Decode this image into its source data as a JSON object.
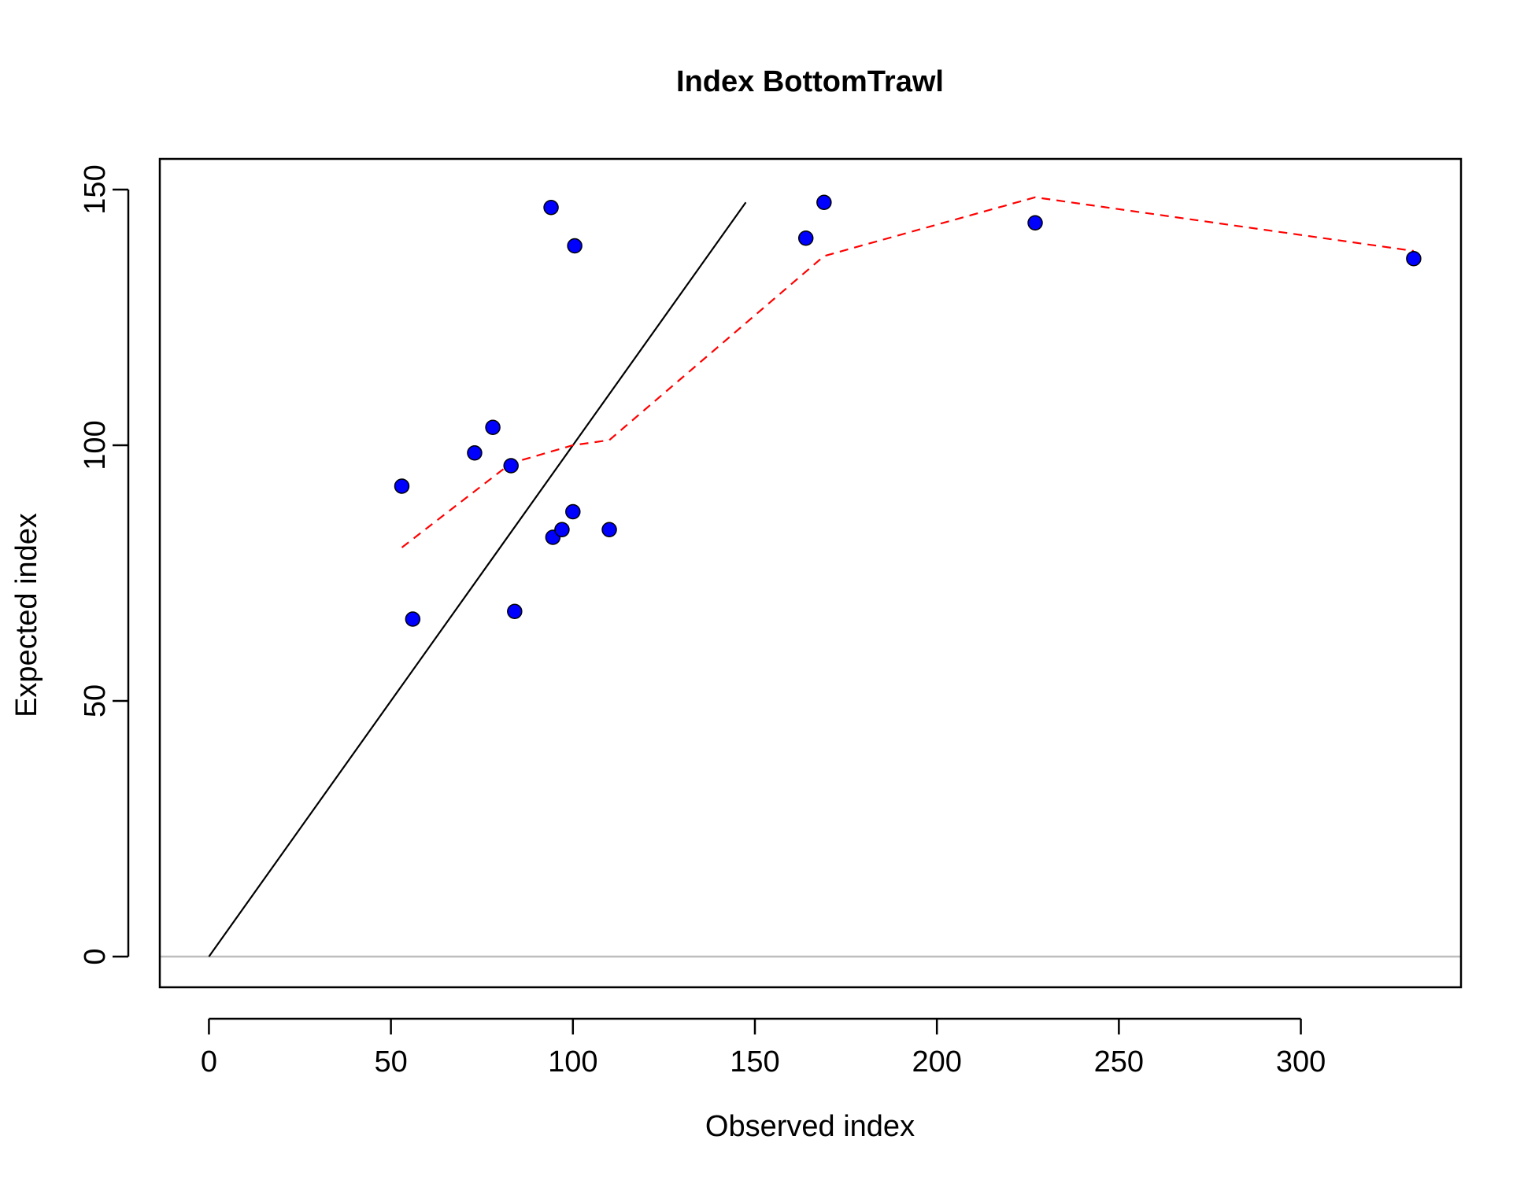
{
  "chart_data": {
    "type": "scatter",
    "title": "Index BottomTrawl",
    "xlabel": "Observed index",
    "ylabel": "Expected index",
    "xlim": [
      -13.5,
      344
    ],
    "ylim": [
      -6,
      156
    ],
    "xticks": [
      0,
      50,
      100,
      150,
      200,
      250,
      300
    ],
    "yticks": [
      0,
      50,
      100,
      150
    ],
    "grid": false,
    "legend": "none",
    "points": [
      {
        "x": 53,
        "y": 92
      },
      {
        "x": 56,
        "y": 66
      },
      {
        "x": 73,
        "y": 98.5
      },
      {
        "x": 78,
        "y": 103.5
      },
      {
        "x": 83,
        "y": 96
      },
      {
        "x": 84,
        "y": 67.5
      },
      {
        "x": 94,
        "y": 146.5
      },
      {
        "x": 94.5,
        "y": 82
      },
      {
        "x": 97,
        "y": 83.5
      },
      {
        "x": 100,
        "y": 87
      },
      {
        "x": 100.5,
        "y": 139
      },
      {
        "x": 110,
        "y": 83.5
      },
      {
        "x": 164,
        "y": 140.5
      },
      {
        "x": 169,
        "y": 147.5
      },
      {
        "x": 227,
        "y": 143.5
      },
      {
        "x": 331,
        "y": 136.5
      }
    ],
    "identity_line": {
      "x": [
        0,
        147.5
      ],
      "y": [
        0,
        147.5
      ]
    },
    "smooth_line": {
      "x": [
        53,
        83,
        100,
        110,
        169,
        227,
        331
      ],
      "y": [
        80,
        96.5,
        100,
        101,
        137,
        148.5,
        138
      ]
    },
    "zero_line_y": 0,
    "colors": {
      "points": "#0000ff",
      "point_outline": "#000000",
      "identity_line": "#000000",
      "smooth_line": "#ff0000",
      "zero_line": "#bebebe"
    }
  }
}
